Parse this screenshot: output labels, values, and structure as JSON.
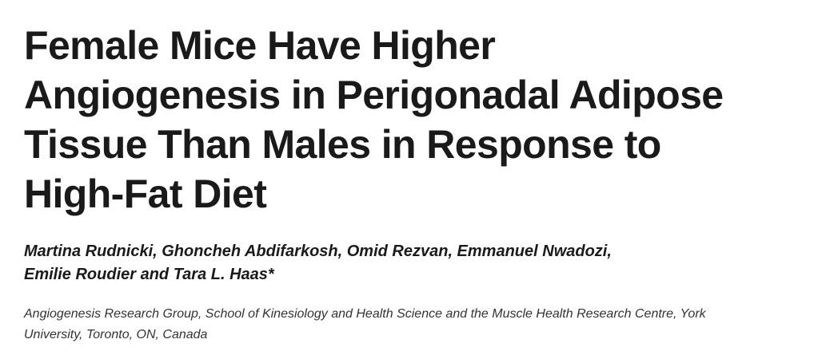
{
  "article": {
    "title_lines": [
      "Female Mice Have Higher",
      "Angiogenesis in Perigonadal Adipose",
      "Tissue Than Males in Response to",
      "High-Fat Diet"
    ],
    "author_lines": [
      "Martina Rudnicki, Ghoncheh Abdifarkosh, Omid Rezvan, Emmanuel Nwadozi,",
      "Emilie Roudier and Tara L. Haas*"
    ],
    "affiliation_lines": [
      "Angiogenesis Research Group, School of Kinesiology and Health Science and the Muscle Health Research Centre, York",
      "University, Toronto, ON, Canada"
    ]
  }
}
